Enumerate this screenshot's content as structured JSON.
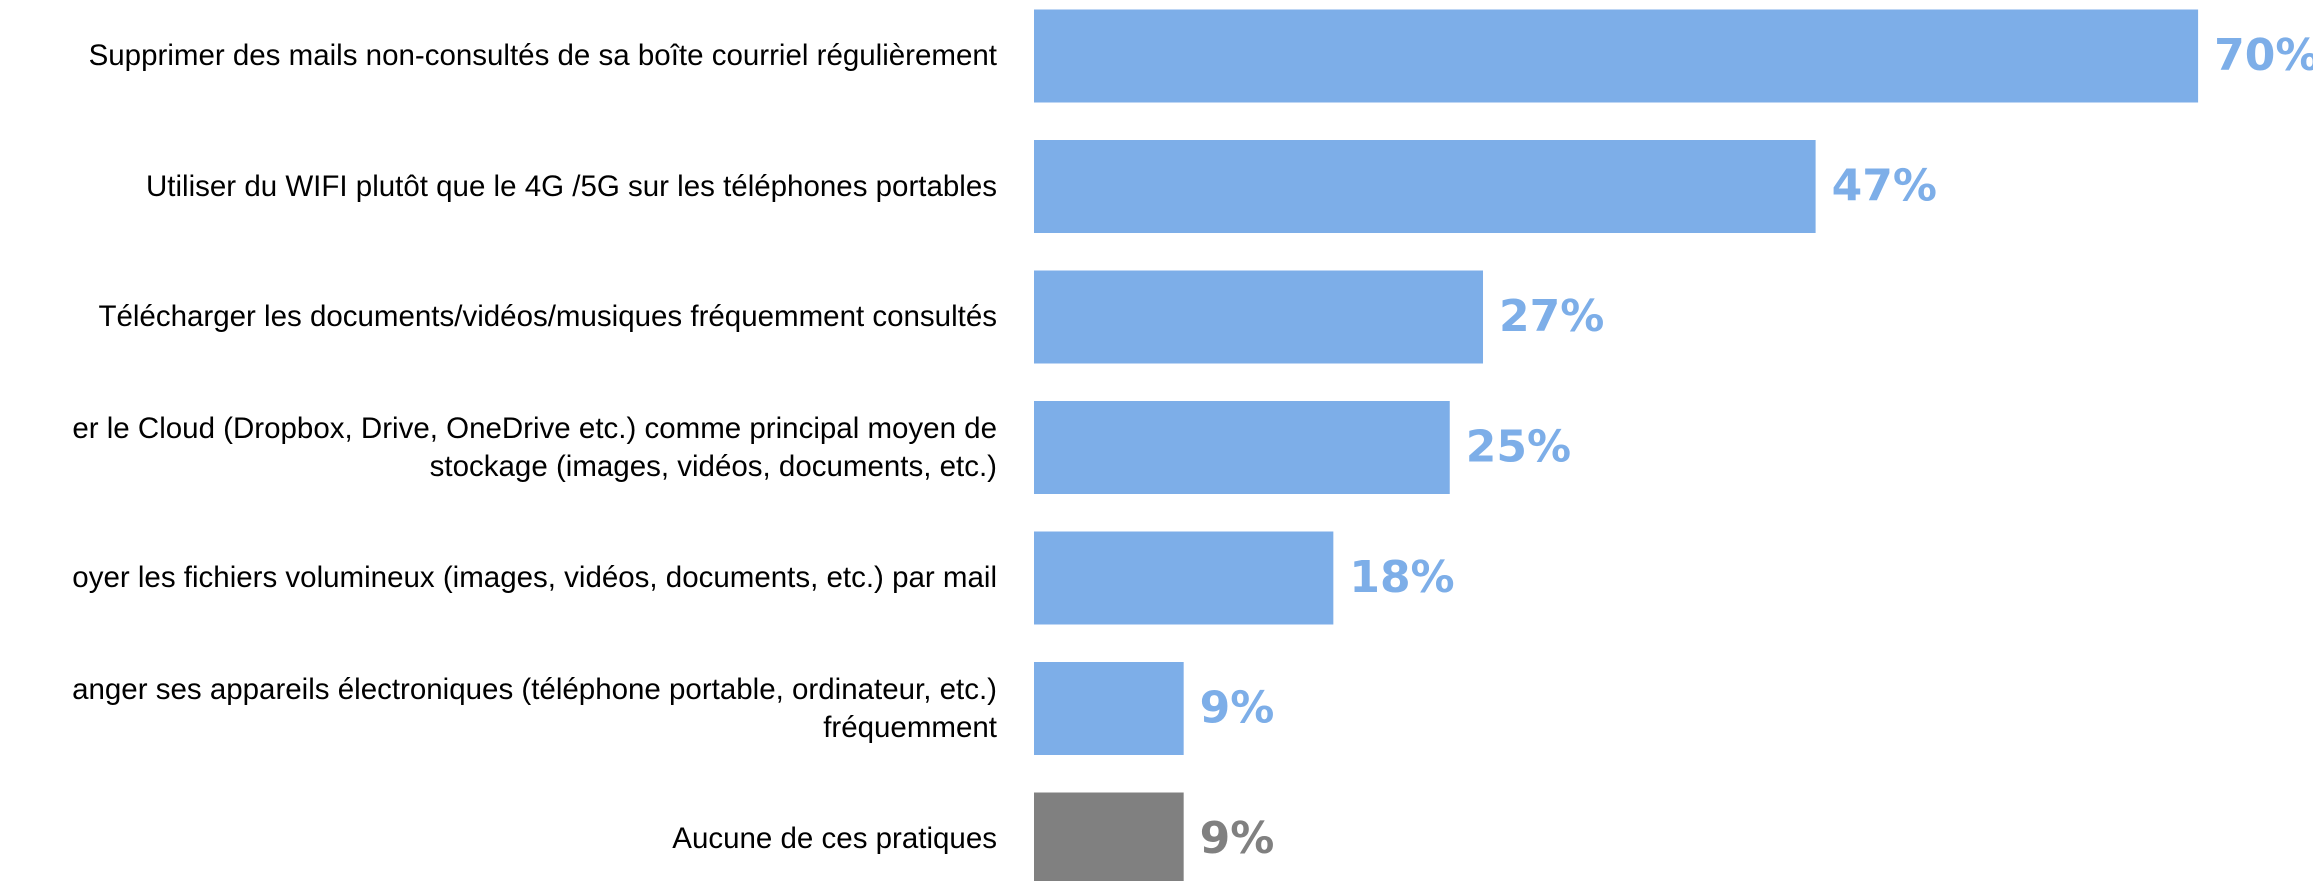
{
  "chart_data": {
    "type": "bar",
    "orientation": "horizontal",
    "categories": [
      "Supprimer des mails non-consultés de sa boîte courriel régulièrement",
      "Utiliser du WIFI plutôt que le 4G /5G sur les téléphones portables",
      "Télécharger les documents/vidéos/musiques fréquemment consultés",
      "er le Cloud (Dropbox, Drive, OneDrive etc.) comme principal moyen de\nstockage (images, vidéos, documents, etc.)",
      "oyer les fichiers volumineux (images, vidéos, documents, etc.) par mail",
      "anger ses appareils électroniques (téléphone portable, ordinateur, etc.)\nfréquemment",
      "Aucune de ces pratiques"
    ],
    "values": [
      70,
      47,
      27,
      25,
      18,
      9,
      9
    ],
    "value_labels": [
      "70%",
      "47%",
      "27%",
      "25%",
      "18%",
      "9%",
      "9%"
    ],
    "colors": [
      "#7daee8",
      "#7daee8",
      "#7daee8",
      "#7daee8",
      "#7daee8",
      "#7daee8",
      "#808080"
    ]
  }
}
